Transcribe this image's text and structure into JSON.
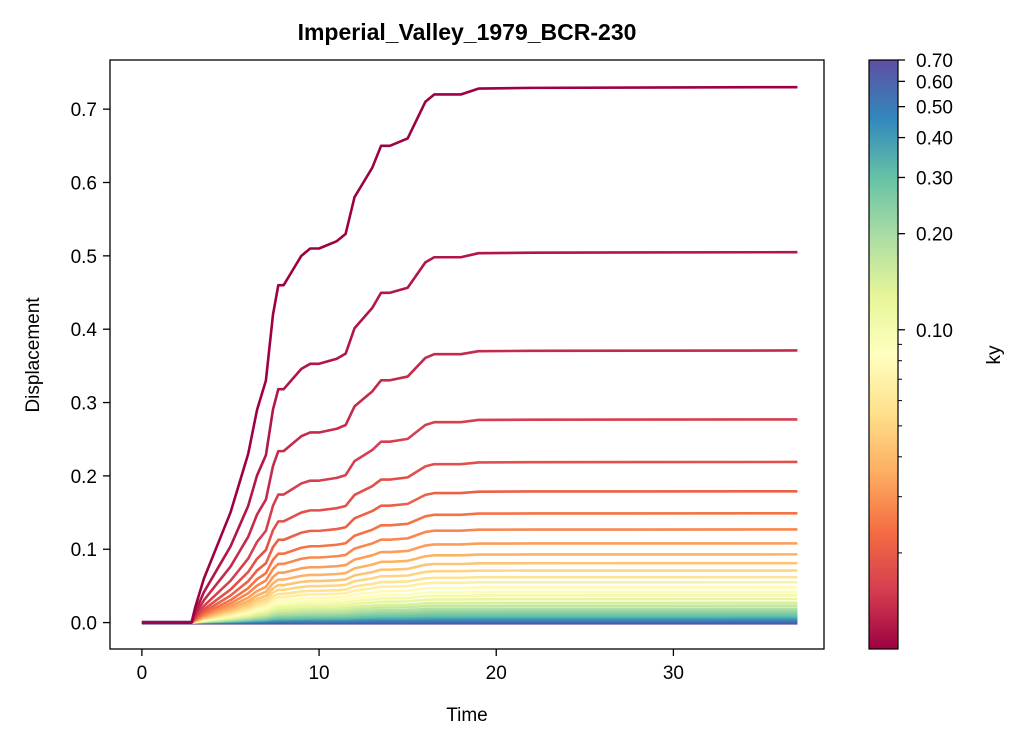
{
  "chart_data": {
    "type": "line",
    "title": "Imperial_Valley_1979_BCR-230",
    "xlabel": "Time",
    "ylabel": "Displacement",
    "xlim": [
      -1.8,
      38.5
    ],
    "ylim": [
      -0.036,
      0.767
    ],
    "xticks": [
      0,
      10,
      20,
      30
    ],
    "yticks": [
      0.0,
      0.1,
      0.2,
      0.3,
      0.4,
      0.5,
      0.6,
      0.7
    ],
    "ytick_labels": [
      "0.0",
      "0.1",
      "0.2",
      "0.3",
      "0.4",
      "0.5",
      "0.6",
      "0.7"
    ],
    "grid": false,
    "colormap": "Spectral",
    "colorbar": {
      "label": "ky",
      "scale": "log",
      "range": [
        0.01,
        0.7
      ],
      "major_ticks": [
        0.1,
        0.2,
        0.3,
        0.4,
        0.5,
        0.6,
        0.7
      ],
      "major_tick_labels": [
        "0.10",
        "0.20",
        "0.30",
        "0.40",
        "0.50",
        "0.60",
        "0.70"
      ],
      "minor_ticks": [
        0.02,
        0.03,
        0.04,
        0.05,
        0.06,
        0.07,
        0.08,
        0.09
      ]
    },
    "x": [
      0,
      2.8,
      3.0,
      3.5,
      4.0,
      4.5,
      5.0,
      5.5,
      6.0,
      6.5,
      7.0,
      7.4,
      7.7,
      8.0,
      8.5,
      9.0,
      9.5,
      10.0,
      11.0,
      11.5,
      12.0,
      12.5,
      13.0,
      13.5,
      14.0,
      15.0,
      16.0,
      16.5,
      18.0,
      19.0,
      22.0,
      37.0
    ],
    "top_curve": [
      0,
      0,
      0.02,
      0.06,
      0.09,
      0.12,
      0.15,
      0.19,
      0.23,
      0.29,
      0.33,
      0.42,
      0.46,
      0.46,
      0.48,
      0.5,
      0.51,
      0.51,
      0.52,
      0.53,
      0.58,
      0.6,
      0.62,
      0.65,
      0.65,
      0.66,
      0.71,
      0.72,
      0.72,
      0.728,
      0.729,
      0.73
    ],
    "finals": [
      0.73,
      0.505,
      0.371,
      0.277,
      0.219,
      0.179,
      0.149,
      0.127,
      0.108,
      0.093,
      0.081,
      0.071,
      0.062,
      0.055,
      0.048,
      0.042,
      0.037,
      0.032,
      0.027,
      0.023,
      0.019,
      0.016,
      0.013,
      0.01,
      0.008,
      0.006,
      0.004,
      0.002,
      0.001,
      0.0
    ],
    "ky": [
      0.01,
      0.0116,
      0.0134,
      0.0155,
      0.018,
      0.0208,
      0.0241,
      0.0279,
      0.0323,
      0.0374,
      0.0433,
      0.0502,
      0.0581,
      0.0673,
      0.0779,
      0.0902,
      0.1045,
      0.1211,
      0.1402,
      0.1624,
      0.1881,
      0.2178,
      0.2523,
      0.2922,
      0.3384,
      0.392,
      0.454,
      0.5258,
      0.609,
      0.7
    ]
  },
  "colors": {
    "spectral_stops": [
      "#9e0142",
      "#d53e4f",
      "#f46d43",
      "#fdae61",
      "#fee08b",
      "#ffffbf",
      "#e6f598",
      "#abdda4",
      "#66c2a5",
      "#3288bd",
      "#5e4fa2"
    ]
  }
}
